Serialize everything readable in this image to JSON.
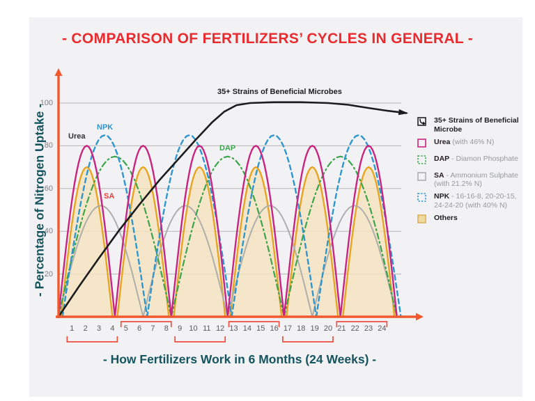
{
  "title": "- COMPARISON OF FERTILIZERS’ CYCLES IN GENERAL -",
  "plot_labels": {
    "urea": "Urea",
    "npk": "NPK",
    "dap": "DAP",
    "sa": "SA",
    "microbes": "35+ Strains of Beneficial Microbes"
  },
  "legend": {
    "items": [
      {
        "icon": "microbes-arrow-icon",
        "bold": "35+ Strains of Beneficial Microbe",
        "rest": ""
      },
      {
        "icon": "urea-swatch-icon",
        "bold": "Urea",
        "rest": " (with 46% N)"
      },
      {
        "icon": "dap-swatch-icon",
        "bold": "DAP",
        "rest": " - Diamon Phosphate"
      },
      {
        "icon": "sa-swatch-icon",
        "bold": "SA",
        "rest": " - Ammonium Sulphate (with 21.2% N)"
      },
      {
        "icon": "npk-swatch-icon",
        "bold": "NPK",
        "rest": " - 16-16-8, 20-20-15, 24-24-20 (with 40% N)"
      },
      {
        "icon": "others-swatch-icon",
        "bold": "Others",
        "rest": ""
      }
    ]
  },
  "chart_data": {
    "type": "line",
    "title": "- COMPARISON OF FERTILIZERS’ CYCLES IN GENERAL -",
    "xlabel": "- How Fertilizers Work in 6 Months (24 Weeks) -",
    "ylabel": "- Percentage of Nitrogen Uptake -",
    "x_ticks": [
      1,
      2,
      3,
      4,
      5,
      6,
      7,
      8,
      9,
      10,
      11,
      12,
      13,
      14,
      15,
      16,
      17,
      18,
      19,
      20,
      21,
      22,
      23,
      24
    ],
    "y_ticks": [
      20,
      40,
      60,
      80,
      100
    ],
    "xlim": [
      0,
      26.5
    ],
    "ylim": [
      0,
      110
    ],
    "grid": "horizontal-gray",
    "axis_color": "#f1582c",
    "grid_color": "#b5b5b5",
    "bracket_color": "#ee4f3f",
    "week_groups": [
      {
        "weeks": [
          1,
          4
        ],
        "bracket": "below"
      },
      {
        "weeks": [
          5,
          8
        ],
        "bracket": "above"
      },
      {
        "weeks": [
          9,
          12
        ],
        "bracket": "below"
      },
      {
        "weeks": [
          13,
          16
        ],
        "bracket": "above"
      },
      {
        "weeks": [
          17,
          20
        ],
        "bracket": "below"
      },
      {
        "weeks": [
          21,
          24
        ],
        "bracket": "above"
      }
    ],
    "series": [
      {
        "name": "Others",
        "type": "arches",
        "peak": 70,
        "cycles": 6,
        "span_weeks": 25.1,
        "offset_weeks": 0,
        "inset_weeks": 0.18,
        "stroke": "#e8a41f",
        "fill": "#f6e3bc",
        "fill_opacity": 0.78,
        "style": "solid",
        "width": 2.4
      },
      {
        "name": "SA",
        "type": "arches",
        "peak": 52,
        "cycles": 4,
        "span_weeks": 25.1,
        "offset_weeks": 0,
        "inset_weeks": 0,
        "stroke": "#aeaeac",
        "style": "solid",
        "width": 2
      },
      {
        "name": "DAP",
        "type": "arches",
        "peak": 75,
        "cycles": 3,
        "span_weeks": 25.1,
        "offset_weeks": 0,
        "inset_weeks": 0,
        "stroke": "#3ca44b",
        "style": "dashdot",
        "width": 2.2
      },
      {
        "name": "NPK",
        "type": "arches",
        "peak": 85,
        "cycles": 4,
        "span_weeks": 25.1,
        "offset_weeks": 0.3,
        "inset_weeks": 0,
        "stroke": "#2e96ce",
        "style": "dashed",
        "width": 2.4
      },
      {
        "name": "Urea",
        "type": "arches",
        "peak": 80,
        "cycles": 6,
        "span_weeks": 25.1,
        "offset_weeks": 0,
        "inset_weeks": 0,
        "stroke": "#c92480",
        "style": "solid",
        "width": 2.4
      },
      {
        "name": "35+ Strains of Beneficial Microbes",
        "type": "curve",
        "stroke": "#1c1c1c",
        "style": "solid",
        "width": 2.6,
        "arrow_end": true,
        "points": [
          [
            0,
            0
          ],
          [
            1.5,
            14
          ],
          [
            3,
            27.5
          ],
          [
            4.5,
            40.5
          ],
          [
            6,
            52.5
          ],
          [
            7.5,
            64
          ],
          [
            9,
            74.5
          ],
          [
            10.2,
            83
          ],
          [
            11.4,
            91
          ],
          [
            12.3,
            96
          ],
          [
            13.2,
            99
          ],
          [
            14.2,
            100
          ],
          [
            16,
            100.4
          ],
          [
            18,
            100.4
          ],
          [
            20,
            100
          ],
          [
            21.5,
            99.2
          ],
          [
            23,
            97.7
          ],
          [
            24.4,
            96.4
          ],
          [
            25.8,
            95.3
          ]
        ]
      }
    ],
    "legend_position": "right",
    "series_label_colors": {
      "urea": "#333333",
      "npk": "#2e96ce",
      "dap": "#3ca44b",
      "sa": "#e8403a",
      "microbes": "#1c1c1c"
    }
  }
}
